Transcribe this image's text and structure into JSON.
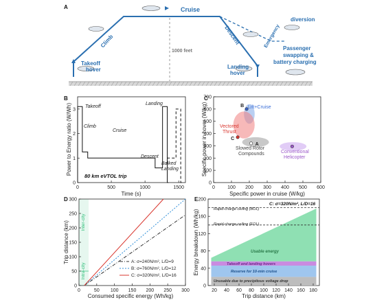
{
  "colors": {
    "mission_blue": "#2a6fb0",
    "panel_a_bg": "#ffffff",
    "usable_energy": "#8fe0b3",
    "takeoff_landing": "#c98be0",
    "reserve": "#9fc6ee",
    "unusable": "#bdbdbd",
    "series_a": "#333333",
    "series_b": "#2f8ed8",
    "series_c": "#d9362e",
    "inter_city": "#2fbf7a"
  },
  "panel_a": {
    "letter": "A",
    "labels": {
      "cruise": "Cruise",
      "climb": "Climb",
      "descent": "Descent",
      "takeoff": "Takeoff",
      "takeoff2": "hover",
      "landing": "Landing",
      "landing2": "hover",
      "altitude": "1000 feet",
      "emergency": "Emergency",
      "diversion": "diversion",
      "passenger1": "Passenger",
      "passenger2": "swapping &",
      "passenger3": "battery charging"
    }
  },
  "panel_b": {
    "letter": "B",
    "trip_label": "80 km eVTOL trip",
    "annotations": [
      "Takeoff",
      "Climb",
      "Cruise",
      "Landing",
      "Descent",
      "Balked",
      "Landing"
    ]
  },
  "panel_c": {
    "letter": "C",
    "annotations": [
      "Lift+Cruise",
      "Vectored",
      "Thrust",
      "Slowed Rotor",
      "Compounds",
      "Conventional",
      "Helicopter"
    ],
    "point_labels": [
      "B",
      "A",
      "C"
    ]
  },
  "panel_d": {
    "letter": "D",
    "zone_labels": [
      "Inter-city",
      "Intra-city"
    ],
    "legend": [
      "A: σ=240N/m², L/D=9",
      "B: σ=760N/m², L/D=12",
      "C: σ=320N/m², L/D=16"
    ]
  },
  "panel_e": {
    "letter": "E",
    "header": "C: σ=320N/m², L/D=16",
    "ceiling_bol": "Rapid-charge ceiling (BOL)",
    "ceiling_eol": "Rapid-charge ceiling (EOL)",
    "band_labels": [
      "Usable energy",
      "Takeoff and landing hovers",
      "Reserve for 10-min cruise",
      "Unusable due to precipitous voltage drop"
    ]
  },
  "chart_data": [
    {
      "type": "line",
      "panel": "B",
      "xlabel": "Time (s)",
      "ylabel": "Power to Energy ratio (W/Wh)",
      "xlim": [
        0,
        1600
      ],
      "ylim": [
        0,
        3.5
      ],
      "xticks": [
        0,
        500,
        1000,
        1500
      ],
      "yticks": [
        0,
        1,
        2,
        3
      ],
      "series": [
        {
          "style": "solid",
          "x": [
            0,
            0,
            70,
            70,
            150,
            150,
            1150,
            1150,
            1260,
            1260,
            1330,
            1330,
            1350
          ],
          "y": [
            0,
            3.1,
            3.1,
            1.25,
            1.25,
            1.0,
            1.0,
            0.6,
            0.6,
            3.1,
            3.1,
            0,
            0
          ]
        },
        {
          "style": "dashed",
          "x": [
            1330,
            1330,
            1460,
            1460,
            1530,
            1530,
            1560
          ],
          "y": [
            0.6,
            1.0,
            1.0,
            3.0,
            3.0,
            0,
            0
          ]
        }
      ]
    },
    {
      "type": "scatter",
      "panel": "C",
      "xlabel": "Specific power in cruise (W/kg)",
      "ylabel": "Specific power in hover (W/kg)",
      "xlim": [
        0,
        600
      ],
      "ylim": [
        0,
        700
      ],
      "xticks": [
        0,
        100,
        200,
        300,
        400,
        500,
        600
      ],
      "yticks": [
        0,
        100,
        200,
        300,
        400,
        500,
        600,
        700
      ],
      "regions": [
        {
          "label": "Lift+Cruise",
          "cx": 200,
          "cy": 560,
          "rx": 30,
          "ry": 80,
          "color": "#7fa8e8"
        },
        {
          "label": "Vectored Thrust",
          "cx": 170,
          "cy": 470,
          "rx": 60,
          "ry": 110,
          "color": "#f08080"
        },
        {
          "label": "Slowed Rotor Compounds",
          "cx": 235,
          "cy": 330,
          "rx": 75,
          "ry": 40,
          "color": "#9a9a9a"
        },
        {
          "label": "Conventional Helicopter",
          "cx": 445,
          "cy": 295,
          "rx": 75,
          "ry": 35,
          "color": "#c9a2ee"
        }
      ],
      "points": [
        {
          "label": "B",
          "x": 185,
          "y": 600,
          "color": "#3b63c8"
        },
        {
          "label": "A",
          "x": 210,
          "y": 320,
          "color": "#ffffff"
        },
        {
          "label": "C",
          "x": 135,
          "y": 370,
          "color": "#d9362e"
        },
        {
          "label": "",
          "x": 440,
          "y": 295,
          "color": "#9b59c9"
        }
      ]
    },
    {
      "type": "line",
      "panel": "D",
      "xlabel": "Consumed specific energy (Wh/kg)",
      "ylabel": "Trip distance (km)",
      "xlim": [
        0,
        300
      ],
      "ylim": [
        0,
        300
      ],
      "xticks": [
        0,
        50,
        100,
        150,
        200,
        250,
        300
      ],
      "yticks": [
        0,
        50,
        100,
        150,
        200,
        250,
        300
      ],
      "series": [
        {
          "name": "A: σ=240N/m², L/D=9",
          "style": "dashdot",
          "x": [
            15,
            300
          ],
          "y": [
            0,
            245
          ]
        },
        {
          "name": "B: σ=760N/m², L/D=12",
          "style": "dotted",
          "x": [
            15,
            300
          ],
          "y": [
            0,
            310
          ]
        },
        {
          "name": "C: σ=320N/m², L/D=16",
          "style": "solid",
          "x": [
            15,
            238
          ],
          "y": [
            0,
            300
          ]
        }
      ],
      "zones": [
        {
          "label": "Inter-city",
          "y_range": [
            50,
            300
          ]
        },
        {
          "label": "Intra-city",
          "y_range": [
            0,
            50
          ]
        }
      ]
    },
    {
      "type": "area",
      "panel": "E",
      "xlabel": "Trip distance (km)",
      "ylabel": "Energy breakdown (Wh/kg)",
      "xlim": [
        10,
        190
      ],
      "ylim": [
        0,
        200
      ],
      "xticks": [
        20,
        40,
        60,
        80,
        100,
        120,
        140,
        160,
        180
      ],
      "yticks": [
        0,
        40,
        80,
        120,
        160,
        200
      ],
      "bands": [
        {
          "label": "Unusable due to precipitous voltage drop",
          "y0": 0,
          "y1": 20
        },
        {
          "label": "Reserve for 10-min cruise",
          "y0": 20,
          "y1": 46
        },
        {
          "label": "Takeoff and landing hovers",
          "y0": 46,
          "y1": 56
        },
        {
          "label": "Usable energy",
          "x": [
            15,
            185
          ],
          "y0": 56,
          "y1_start": 64,
          "y1_end": 178
        }
      ],
      "reference_lines": [
        {
          "label": "Rapid-charge ceiling (BOL)",
          "y": 180
        },
        {
          "label": "Rapid-charge ceiling (EOL)",
          "y": 140
        }
      ]
    }
  ]
}
